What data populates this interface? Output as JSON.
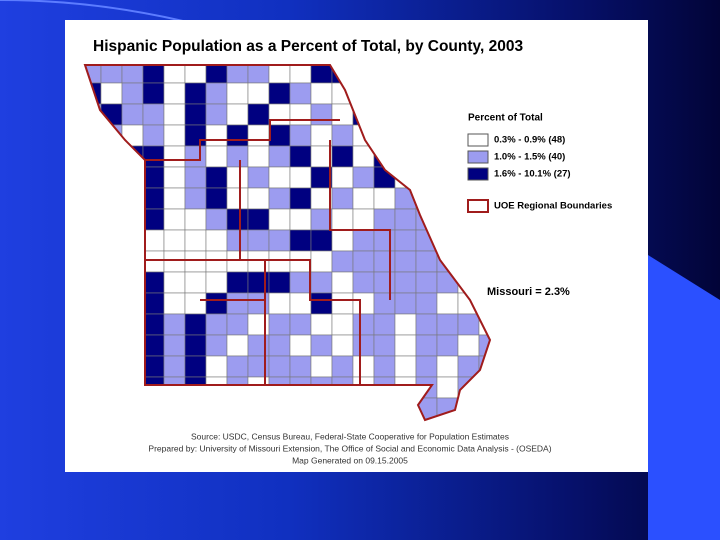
{
  "title": "Hispanic Population as a Percent of Total, by County, 2003",
  "legend": {
    "title": "Percent of Total",
    "items": [
      {
        "label": "0.3% - 0.9% (48)",
        "color": "#ffffff"
      },
      {
        "label": "1.0% - 1.5% (40)",
        "color": "#9c9cf0"
      },
      {
        "label": "1.6% - 10.1% (27)",
        "color": "#000080"
      }
    ],
    "boundary": {
      "label": "UOE Regional Boundaries",
      "color": "#a01c1c"
    }
  },
  "annotation": "Missouri = 2.3%",
  "source": [
    "Source: USDC, Census Bureau, Federal-State Cooperative for Population Estimates",
    "Prepared by: University of Missouri Extension, The Office of Social and Economic Data Analysis - (OSEDA)",
    "Map Generated on 09.15.2005"
  ]
}
